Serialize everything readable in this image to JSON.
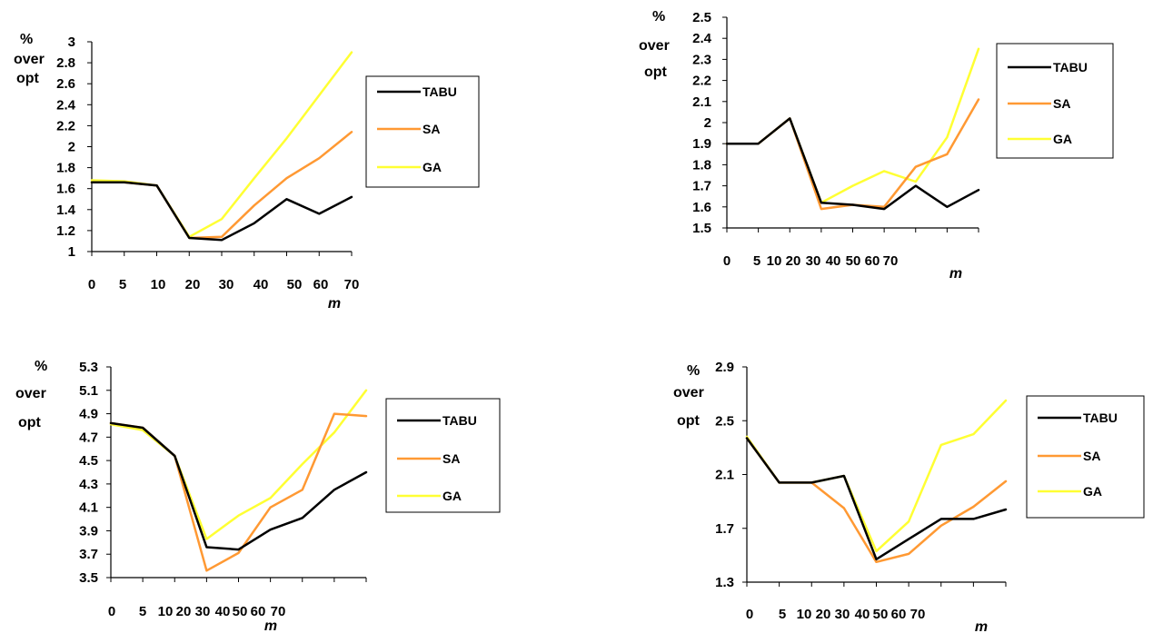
{
  "chart_data": [
    {
      "type": "line",
      "ylabel_lines": [
        "%",
        "over",
        "opt"
      ],
      "xlabel": "m",
      "categories": [
        "0",
        "5",
        "10",
        "20",
        "30",
        "40",
        "50",
        "60",
        "70"
      ],
      "ylim": [
        1,
        3
      ],
      "yticks": [
        "1",
        "1.2",
        "1.4",
        "1.6",
        "1.8",
        "2",
        "2.2",
        "2.4",
        "2.6",
        "2.8",
        "3"
      ],
      "legend_position": "right",
      "series": [
        {
          "name": "TABU",
          "color": "#000000",
          "values": [
            1.66,
            1.66,
            1.63,
            1.13,
            1.11,
            1.27,
            1.5,
            1.36,
            1.52
          ]
        },
        {
          "name": "SA",
          "color": "#FF9933",
          "values": [
            1.66,
            1.66,
            1.63,
            1.13,
            1.14,
            1.44,
            1.7,
            1.89,
            2.14
          ]
        },
        {
          "name": "GA",
          "color": "#FFFF33",
          "values": [
            1.68,
            1.67,
            1.63,
            1.14,
            1.31,
            1.7,
            2.08,
            2.49,
            2.9
          ]
        }
      ]
    },
    {
      "type": "line",
      "ylabel_lines": [
        "%",
        "over",
        "opt"
      ],
      "xlabel": "m",
      "categories": [
        "0",
        "5",
        "10",
        "20",
        "30",
        "40",
        "50",
        "60",
        "70"
      ],
      "ylim": [
        1.5,
        2.5
      ],
      "yticks": [
        "1.5",
        "1.6",
        "1.7",
        "1.8",
        "1.9",
        "2",
        "2.1",
        "2.2",
        "2.3",
        "2.4",
        "2.5"
      ],
      "legend_position": "right",
      "series": [
        {
          "name": "TABU",
          "color": "#000000",
          "values": [
            1.9,
            1.9,
            2.02,
            1.62,
            1.61,
            1.59,
            1.7,
            1.6,
            1.68
          ]
        },
        {
          "name": "SA",
          "color": "#FF9933",
          "values": [
            1.9,
            1.9,
            2.02,
            1.59,
            1.61,
            1.6,
            1.79,
            1.85,
            2.11
          ]
        },
        {
          "name": "GA",
          "color": "#FFFF33",
          "values": [
            1.9,
            1.9,
            2.02,
            1.62,
            1.7,
            1.77,
            1.72,
            1.93,
            2.35
          ]
        }
      ]
    },
    {
      "type": "line",
      "ylabel_lines": [
        "%",
        "over",
        "opt"
      ],
      "xlabel": "m",
      "categories": [
        "0",
        "5",
        "10",
        "20",
        "30",
        "40",
        "50",
        "60",
        "70"
      ],
      "ylim": [
        3.5,
        5.3
      ],
      "yticks": [
        "3.5",
        "3.7",
        "3.9",
        "4.1",
        "4.3",
        "4.5",
        "4.7",
        "4.9",
        "5.1",
        "5.3"
      ],
      "legend_position": "right",
      "series": [
        {
          "name": "TABU",
          "color": "#000000",
          "values": [
            4.82,
            4.78,
            4.54,
            3.76,
            3.74,
            3.91,
            4.01,
            4.25,
            4.4
          ]
        },
        {
          "name": "SA",
          "color": "#FF9933",
          "values": [
            4.82,
            4.78,
            4.54,
            3.56,
            3.71,
            4.1,
            4.25,
            4.9,
            4.88
          ]
        },
        {
          "name": "GA",
          "color": "#FFFF33",
          "values": [
            4.81,
            4.76,
            4.54,
            3.83,
            4.03,
            4.18,
            4.47,
            4.74,
            5.1
          ]
        }
      ]
    },
    {
      "type": "line",
      "ylabel_lines": [
        "%",
        "over",
        "opt"
      ],
      "xlabel": "m",
      "categories": [
        "0",
        "5",
        "10",
        "20",
        "30",
        "40",
        "50",
        "60",
        "70"
      ],
      "ylim": [
        1.3,
        2.9
      ],
      "yticks": [
        "1.3",
        "1.7",
        "2.1",
        "2.5",
        "2.9"
      ],
      "legend_position": "right",
      "series": [
        {
          "name": "TABU",
          "color": "#000000",
          "values": [
            2.37,
            2.04,
            2.04,
            2.09,
            1.47,
            1.62,
            1.77,
            1.77,
            1.84
          ]
        },
        {
          "name": "SA",
          "color": "#FF9933",
          "values": [
            2.37,
            2.04,
            2.04,
            1.85,
            1.45,
            1.51,
            1.72,
            1.86,
            2.05
          ]
        },
        {
          "name": "GA",
          "color": "#FFFF33",
          "values": [
            2.38,
            2.04,
            2.04,
            2.09,
            1.53,
            1.75,
            2.32,
            2.4,
            2.65
          ]
        }
      ]
    }
  ]
}
